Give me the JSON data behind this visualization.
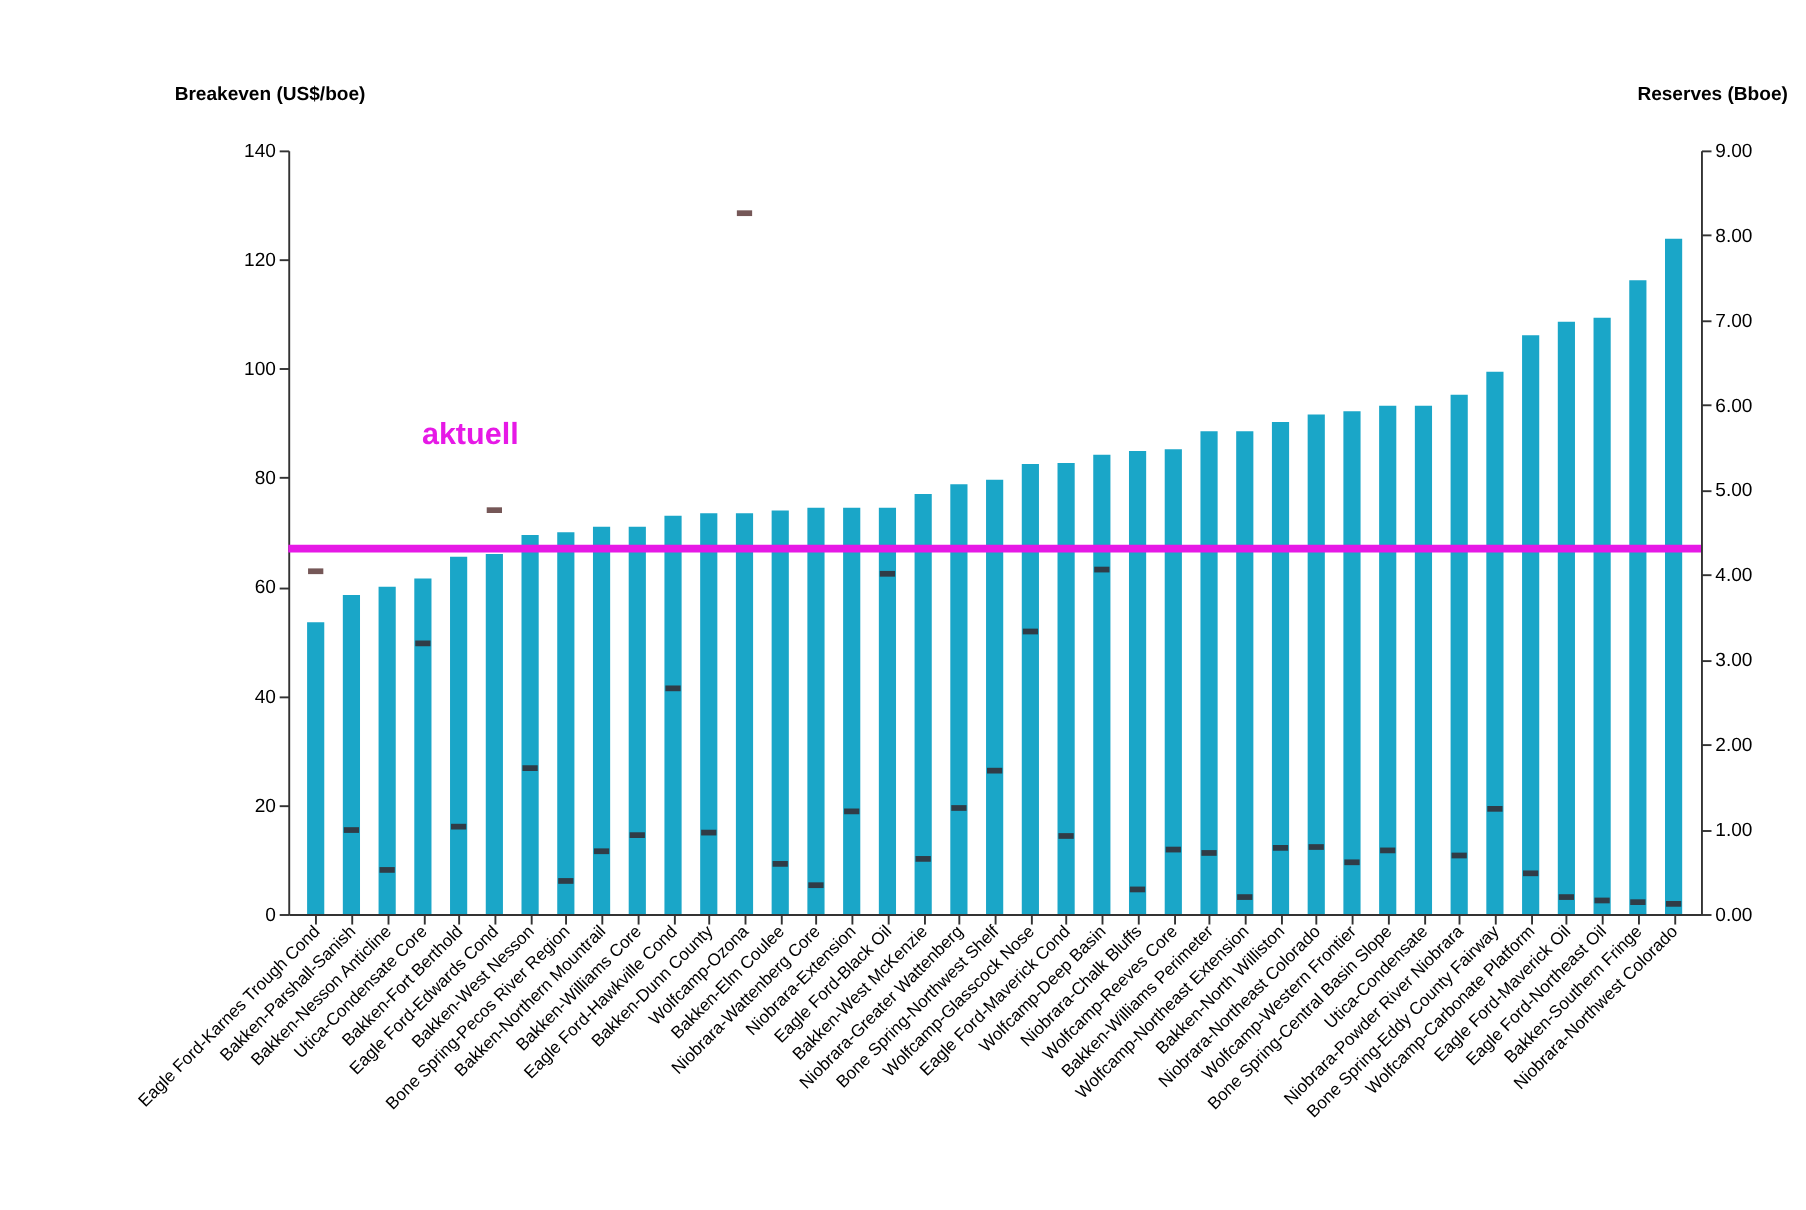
{
  "chart_data": {
    "type": "bar",
    "ylabel": "Breakeven (US$/boe)",
    "y2label": "Reserves (Bboe)",
    "categories": [
      "Eagle Ford-Karnes Trough Cond",
      "Bakken-Parshall-Sanish",
      "Bakken-Nesson Anticline",
      "Utica-Condensate Core",
      "Bakken-Fort Berthold",
      "Eagle Ford-Edwards Cond",
      "Bakken-West Nesson",
      "Bone Spring-Pecos River Region",
      "Bakken-Northern Mountrail",
      "Bakken-Williams Core",
      "Eagle Ford-Hawkville Cond",
      "Bakken-Dunn County",
      "Wolfcamp-Ozona",
      "Bakken-Elm Coulee",
      "Niobrara-Wattenberg Core",
      "Niobrara-Extension",
      "Eagle Ford-Black Oil",
      "Bakken-West McKenzie",
      "Niobrara-Greater Wattenberg",
      "Bone Spring-Northwest Shelf",
      "Wolfcamp-Glasscock Nose",
      "Eagle Ford-Maverick Cond",
      "Wolfcamp-Deep Basin",
      "Niobrara-Chalk Bluffs",
      "Wolfcamp-Reeves Core",
      "Bakken-Williams Perimeter",
      "Wolfcamp-Northeast Extension",
      "Bakken-North Williston",
      "Niobrara-Northeast Colorado",
      "Wolfcamp-Western Frontier",
      "Bone Spring-Central Basin Slope",
      "Utica-Condensate",
      "Niobrara-Powder River Niobrara",
      "Bone Spring-Eddy County Fairway",
      "Wolfcamp-Carbonate Platform",
      "Eagle Ford-Maverick Oil",
      "Eagle Ford-Northeast Oil",
      "Bakken-Southern Fringe",
      "Niobrara-Northwest Colorado"
    ],
    "series": [
      {
        "color": "#1aa6c8",
        "values": [
          53.5,
          58.5,
          60,
          61.5,
          65.5,
          66,
          69.5,
          70,
          71,
          71,
          73,
          73.5,
          73.5,
          74,
          74.5,
          74.5,
          74.5,
          77,
          78.8,
          79.6,
          82.5,
          82.7,
          84.2,
          84.9,
          85.2,
          88.5,
          88.5,
          90.2,
          91.6,
          92.2,
          93.2,
          93.2,
          95.2,
          99.4,
          106.1,
          108.6,
          109.3,
          116.2,
          123.8
        ]
      },
      {
        "type": "scatter",
        "axis": "y2",
        "color": "#3a1010",
        "values": [
          4.04,
          0.99,
          0.52,
          3.19,
          1.03,
          4.76,
          1.72,
          0.39,
          0.74,
          0.93,
          2.66,
          0.96,
          8.26,
          0.59,
          0.34,
          1.21,
          4.01,
          0.65,
          1.25,
          1.69,
          3.33,
          0.92,
          4.06,
          0.29,
          0.76,
          0.72,
          0.2,
          0.78,
          0.79,
          0.61,
          0.75,
          null,
          0.69,
          1.24,
          0.48,
          0.2,
          0.16,
          0.14,
          0.12
        ]
      }
    ],
    "ylim": [
      0,
      140
    ],
    "yticks": [
      0,
      20,
      40,
      60,
      80,
      100,
      120,
      140
    ],
    "y2lim": [
      0,
      9
    ],
    "y2ticks": [
      {
        "value": 0,
        "label": "0.00"
      },
      {
        "value": 1,
        "label": "1.00"
      },
      {
        "value": 2,
        "label": "2.00"
      },
      {
        "value": 3,
        "label": "3.00"
      },
      {
        "value": 4,
        "label": "4.00"
      },
      {
        "value": 5,
        "label": "5.00"
      },
      {
        "value": 6,
        "label": "6.00"
      },
      {
        "value": 7,
        "label": "7.00"
      },
      {
        "value": 8,
        "label": "8.00"
      },
      {
        "value": 9,
        "label": "9.00"
      }
    ],
    "ref_lines": [
      {
        "axis": "y",
        "value": 67,
        "label": "aktuell",
        "color": "#e619e6"
      }
    ]
  }
}
